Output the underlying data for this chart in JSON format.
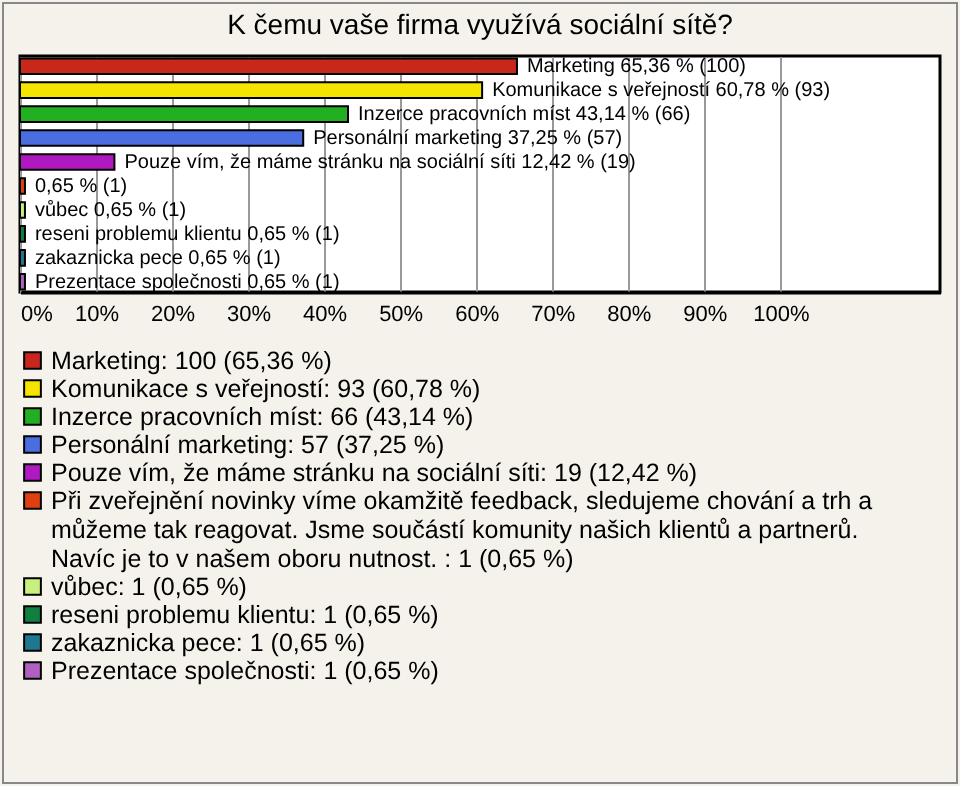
{
  "chart_data": {
    "type": "bar",
    "orientation": "horizontal",
    "title": "K čemu vaše firma využívá sociální sítě?",
    "categories": [
      null,
      null,
      null,
      null,
      null,
      null,
      null,
      null,
      null,
      null
    ],
    "series": [
      {
        "name": "Marketing: 100 (65,36 %)",
        "color": "#c8281c",
        "values": [
          65.36,
          null,
          null,
          null,
          null,
          null,
          null,
          null,
          null,
          null
        ],
        "value_labels": [
          "Marketing 65,36 % (100)",
          null,
          null,
          null,
          null,
          null,
          null,
          null,
          null,
          null
        ]
      },
      {
        "name": "Komunikace s veřejností: 93 (60,78 %)",
        "color": "#f5e400",
        "values": [
          null,
          60.78,
          null,
          null,
          null,
          null,
          null,
          null,
          null,
          null
        ],
        "value_labels": [
          null,
          "Komunikace s veřejností 60,78 % (93)",
          null,
          null,
          null,
          null,
          null,
          null,
          null,
          null
        ]
      },
      {
        "name": "Inzerce pracovních míst: 66 (43,14 %)",
        "color": "#22b022",
        "values": [
          null,
          null,
          43.14,
          null,
          null,
          null,
          null,
          null,
          null,
          null
        ],
        "value_labels": [
          null,
          null,
          "Inzerce pracovních míst 43,14 % (66)",
          null,
          null,
          null,
          null,
          null,
          null,
          null
        ]
      },
      {
        "name": "Personální marketing: 57 (37,25 %)",
        "color": "#4a6ee0",
        "values": [
          null,
          null,
          null,
          37.25,
          null,
          null,
          null,
          null,
          null,
          null
        ],
        "value_labels": [
          null,
          null,
          null,
          "Personální marketing 37,25 % (57)",
          null,
          null,
          null,
          null,
          null,
          null
        ]
      },
      {
        "name": "Pouze vím, že máme stránku na sociální síti: 19 (12,42 %)",
        "color": "#b018c0",
        "values": [
          null,
          null,
          null,
          null,
          12.42,
          null,
          null,
          null,
          null,
          null
        ],
        "value_labels": [
          null,
          null,
          null,
          null,
          "Pouze vím, že máme stránku na sociální síti 12,42 % (19)",
          null,
          null,
          null,
          null,
          null
        ]
      },
      {
        "name": "Při zveřejnění novinky víme okamžitě feedback, sledujeme chování a trh a můžeme tak reagovat. Jsme součástí komunity našich klientů a partnerů. Navíc je to v našem oboru nutnost. : 1 (0,65 %)",
        "color": "#e04010",
        "values": [
          null,
          null,
          null,
          null,
          null,
          0.65,
          null,
          null,
          null,
          null
        ],
        "value_labels": [
          null,
          null,
          null,
          null,
          null,
          "0,65 % (1)",
          null,
          null,
          null,
          null
        ]
      },
      {
        "name": "vůbec: 1 (0,65 %)",
        "color": "#c8f080",
        "values": [
          null,
          null,
          null,
          null,
          null,
          null,
          0.65,
          null,
          null,
          null
        ],
        "value_labels": [
          null,
          null,
          null,
          null,
          null,
          null,
          "vůbec 0,65 % (1)",
          null,
          null,
          null
        ]
      },
      {
        "name": "reseni problemu klientu: 1 (0,65 %)",
        "color": "#108040",
        "values": [
          null,
          null,
          null,
          null,
          null,
          null,
          null,
          0.65,
          null,
          null
        ],
        "value_labels": [
          null,
          null,
          null,
          null,
          null,
          null,
          null,
          "reseni problemu klientu 0,65 % (1)",
          null,
          null
        ]
      },
      {
        "name": "zakaznicka pece: 1 (0,65 %)",
        "color": "#207890",
        "values": [
          null,
          null,
          null,
          null,
          null,
          null,
          null,
          null,
          0.65,
          null
        ],
        "value_labels": [
          null,
          null,
          null,
          null,
          null,
          null,
          null,
          null,
          "zakaznicka pece 0,65 % (1)",
          null
        ]
      },
      {
        "name": "Prezentace společnosti: 1 (0,65 %)",
        "color": "#b060c0",
        "values": [
          null,
          null,
          null,
          null,
          null,
          null,
          null,
          null,
          null,
          0.65
        ],
        "value_labels": [
          null,
          null,
          null,
          null,
          null,
          null,
          null,
          null,
          null,
          "Prezentace společnosti 0,65 % (1)"
        ]
      }
    ],
    "xlim": [
      0,
      121
    ],
    "xticks": [
      {
        "value": 0,
        "label": "0%"
      },
      {
        "value": 10,
        "label": "10%"
      },
      {
        "value": 20,
        "label": "20%"
      },
      {
        "value": 30,
        "label": "30%"
      },
      {
        "value": 40,
        "label": "40%"
      },
      {
        "value": 50,
        "label": "50%"
      },
      {
        "value": 60,
        "label": "60%"
      },
      {
        "value": 70,
        "label": "70%"
      },
      {
        "value": 80,
        "label": "80%"
      },
      {
        "value": 90,
        "label": "90%"
      },
      {
        "value": 100,
        "label": "100%"
      }
    ],
    "grid": "x",
    "legend": "bottom",
    "tick_labels": "x"
  }
}
